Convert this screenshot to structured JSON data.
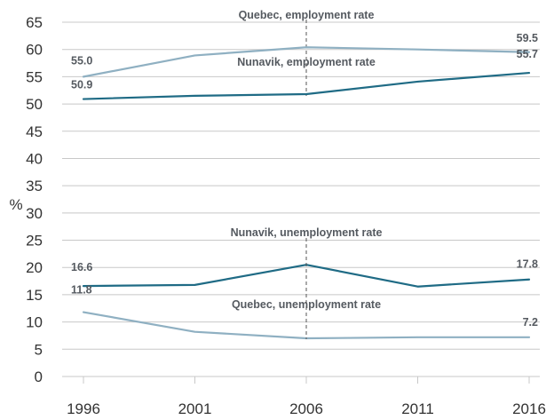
{
  "chart_data": {
    "type": "line",
    "title": "",
    "xlabel": "",
    "ylabel": "%",
    "ylim": [
      0,
      65
    ],
    "ytick_step": 5,
    "grid": true,
    "categories": [
      "1996",
      "2001",
      "2006",
      "2011",
      "2016"
    ],
    "marker_category": "2006",
    "series": [
      {
        "name": "Quebec, employment rate",
        "color": "#8fb0c2",
        "values": [
          55.0,
          58.9,
          60.4,
          60.0,
          59.5
        ],
        "start_label": "55.0",
        "end_label": "59.5"
      },
      {
        "name": "Nunavik, employment rate",
        "color": "#1f6b85",
        "values": [
          50.9,
          51.5,
          51.8,
          54.1,
          55.7
        ],
        "start_label": "50.9",
        "end_label": "55.7"
      },
      {
        "name": "Nunavik, unemployment rate",
        "color": "#1f6b85",
        "values": [
          16.6,
          16.8,
          20.5,
          16.5,
          17.8
        ],
        "start_label": "16.6",
        "end_label": "17.8"
      },
      {
        "name": "Quebec, unemployment rate",
        "color": "#8fb0c2",
        "values": [
          11.8,
          8.2,
          7.0,
          7.2,
          7.2
        ],
        "start_label": "11.8",
        "end_label": "7.2"
      }
    ]
  }
}
